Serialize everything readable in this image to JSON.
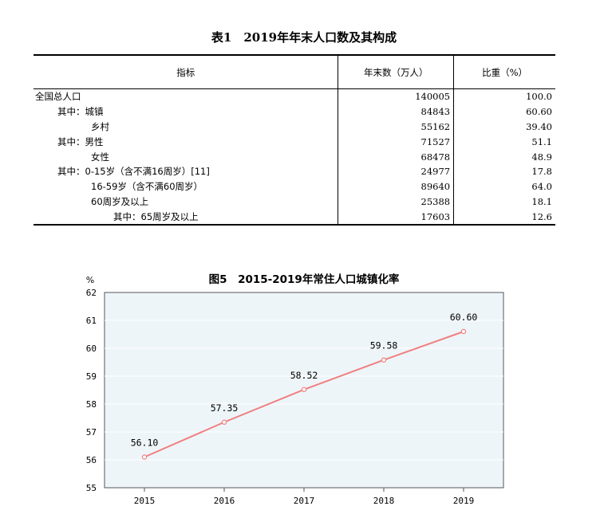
{
  "table": {
    "title": "表1　2019年年末人口数及其构成",
    "headers": [
      "指标",
      "年末数（万人）",
      "比重（%）"
    ],
    "rows": [
      {
        "label": "全国总人口",
        "count": "140005",
        "share": "100.0"
      },
      {
        "label": "其中：城镇",
        "count": "84843",
        "share": "60.60"
      },
      {
        "label": "乡村",
        "count": "55162",
        "share": "39.40"
      },
      {
        "label": "其中：男性",
        "count": "71527",
        "share": "51.1"
      },
      {
        "label": "女性",
        "count": "68478",
        "share": "48.9"
      },
      {
        "label": "其中：0-15岁（含不满16周岁）[11]",
        "count": "24977",
        "share": "17.8"
      },
      {
        "label": "16-59岁（含不满60周岁）",
        "count": "89640",
        "share": "64.0"
      },
      {
        "label": "60周岁及以上",
        "count": "25388",
        "share": "18.1"
      },
      {
        "label": "其中：65周岁及以上",
        "count": "17603",
        "share": "12.6"
      }
    ]
  },
  "chart_data": {
    "type": "line",
    "title": "图5　2015-2019年常住人口城镇化率",
    "ylabel": "%",
    "xlabel": "",
    "x": [
      "2015",
      "2016",
      "2017",
      "2018",
      "2019"
    ],
    "series": [
      {
        "values": [
          56.1,
          57.35,
          58.52,
          59.58,
          60.6
        ],
        "labels": [
          "56.10",
          "57.35",
          "58.52",
          "59.58",
          "60.60"
        ]
      }
    ],
    "ylim": [
      55,
      62
    ],
    "yticks": [
      "55",
      "56",
      "57",
      "58",
      "59",
      "60",
      "61",
      "62"
    ],
    "grid": true,
    "colors": {
      "line": "#f08080",
      "plot_bg": "#eef5f9",
      "grid": "#ffffff"
    }
  }
}
